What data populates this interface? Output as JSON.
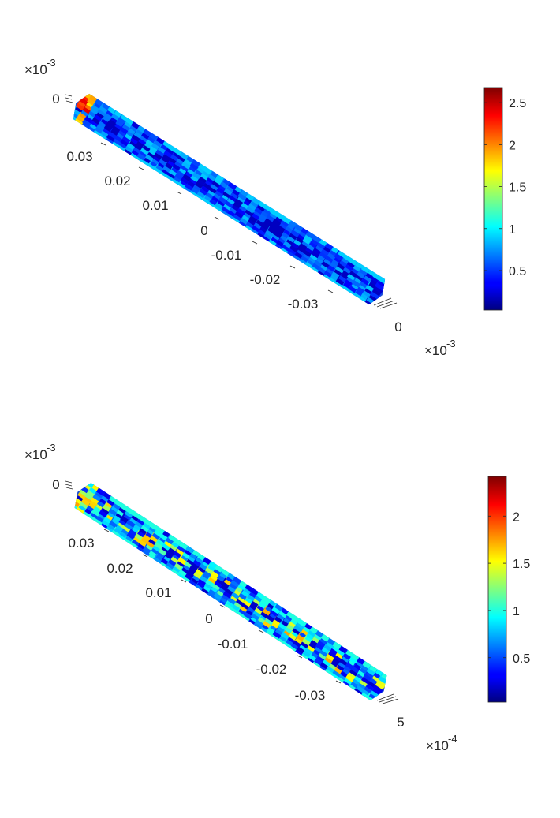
{
  "chart_data": [
    {
      "type": "scatter",
      "title": "",
      "view": "3-D cylinder of colored voxels seen along a diagonal",
      "axis_ticks": [
        "0.03",
        "0.02",
        "0.01",
        "0",
        "-0.01",
        "-0.02",
        "-0.03"
      ],
      "top_tick": "0",
      "side_tick": "0",
      "exponent_top": {
        "base": "×10",
        "power": "-3"
      },
      "exponent_side": {
        "base": "×10",
        "power": "-3"
      },
      "colormap": "jet",
      "colorbar": {
        "ticks": [
          "2.5",
          "2",
          "1.5",
          "1",
          "0.5"
        ],
        "values": [
          2.5,
          2,
          1.5,
          1,
          0.5
        ],
        "clim": [
          0.03,
          2.68
        ]
      },
      "voxel_value_range": [
        0.2,
        0.9
      ],
      "hot_spots": "cap at z = 0.035"
    },
    {
      "type": "scatter",
      "title": "",
      "view": "3-D cylinder of colored voxels seen along a diagonal",
      "axis_ticks": [
        "0.03",
        "0.02",
        "0.01",
        "0",
        "-0.01",
        "-0.02",
        "-0.03"
      ],
      "top_tick": "0",
      "side_tick": "5",
      "exponent_top": {
        "base": "×10",
        "power": "-3"
      },
      "exponent_side": {
        "base": "×10",
        "power": "-4"
      },
      "colormap": "jet",
      "colorbar": {
        "ticks": [
          "2",
          "1.5",
          "1",
          "0.5"
        ],
        "values": [
          2,
          1.5,
          1,
          0.5
        ],
        "clim": [
          0.03,
          2.42
        ]
      },
      "voxel_value_range": [
        0.2,
        1.0
      ],
      "hot_spots": "core, values up to about 1.7"
    }
  ]
}
